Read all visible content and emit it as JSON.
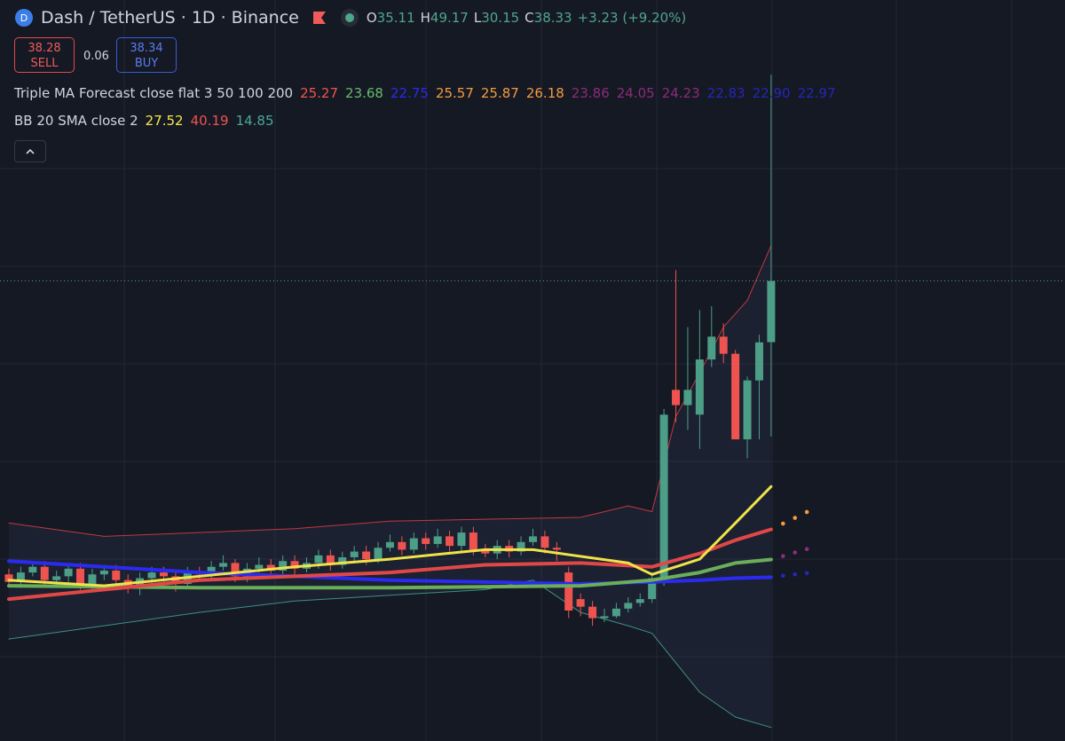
{
  "header": {
    "symbol": "Dash / TetherUS · 1D · Binance",
    "ohlc": [
      {
        "key": "O",
        "value": "35.11"
      },
      {
        "key": "H",
        "value": "49.17"
      },
      {
        "key": "L",
        "value": "30.15"
      },
      {
        "key": "C",
        "value": "38.33"
      }
    ],
    "change": "+3.23 (+9.20%)"
  },
  "trade": {
    "sell_price": "38.28",
    "sell": "SELL",
    "spread": "0.06",
    "buy_price": "38.34",
    "buy": "BUY"
  },
  "indicators": [
    {
      "name": "Triple MA Forecast close flat 3 50 100 200",
      "values": [
        {
          "text": "25.27",
          "color": "#f05350"
        },
        {
          "text": "23.68",
          "color": "#66bb6a"
        },
        {
          "text": "22.75",
          "color": "#2b2bf0"
        },
        {
          "text": "25.57",
          "color": "#f59a3c"
        },
        {
          "text": "25.87",
          "color": "#f59a3c"
        },
        {
          "text": "26.18",
          "color": "#f59a3c"
        },
        {
          "text": "23.86",
          "color": "#8e2a7c"
        },
        {
          "text": "24.05",
          "color": "#8e2a7c"
        },
        {
          "text": "24.23",
          "color": "#8e2a7c"
        },
        {
          "text": "22.83",
          "color": "#2626b8"
        },
        {
          "text": "22.90",
          "color": "#2626b8"
        },
        {
          "text": "22.97",
          "color": "#2626b8"
        }
      ]
    },
    {
      "name": "BB 20 SMA close 2",
      "values": [
        {
          "text": "27.52",
          "color": "#f5e84a"
        },
        {
          "text": "40.19",
          "color": "#f05350"
        },
        {
          "text": "14.85",
          "color": "#4aa79a"
        }
      ]
    }
  ],
  "chart_data": {
    "type": "candlestick",
    "ylim": [
      14.14,
      53.1
    ],
    "up_color": "#4d9e87",
    "down_color": "#ef5350",
    "open": [
      22.9,
      22.5,
      23.0,
      23.3,
      22.6,
      22.8,
      23.2,
      22.4,
      22.9,
      23.1,
      22.6,
      22.2,
      22.7,
      23.0,
      22.8,
      22.4,
      23.0,
      22.9,
      23.3,
      23.5,
      22.8,
      23.2,
      23.4,
      23.1,
      23.6,
      23.2,
      23.5,
      23.9,
      23.4,
      23.8,
      24.1,
      23.7,
      24.3,
      24.6,
      24.2,
      24.8,
      24.5,
      24.9,
      24.4,
      25.1,
      24.2,
      24.0,
      24.4,
      24.1,
      24.6,
      24.9,
      24.3,
      23.0,
      21.6,
      21.2,
      20.6,
      20.7,
      21.1,
      21.4,
      21.6,
      22.56,
      32.6,
      31.8,
      31.3,
      34.2,
      35.4,
      34.5,
      30.0,
      33.1,
      35.11
    ],
    "high": [
      23.2,
      23.3,
      23.6,
      23.6,
      23.1,
      23.5,
      23.5,
      23.2,
      23.4,
      23.4,
      22.9,
      23.0,
      23.3,
      23.3,
      23.1,
      23.3,
      23.3,
      23.6,
      23.9,
      23.7,
      23.5,
      23.8,
      23.7,
      23.9,
      23.9,
      23.8,
      24.2,
      24.2,
      24.1,
      24.4,
      24.4,
      24.6,
      25.0,
      24.9,
      25.1,
      25.1,
      25.3,
      25.2,
      25.4,
      25.4,
      24.5,
      24.7,
      24.7,
      24.9,
      25.3,
      25.2,
      24.6,
      23.3,
      21.9,
      21.5,
      21.1,
      21.4,
      21.7,
      21.9,
      23.0,
      31.6,
      38.9,
      35.9,
      36.8,
      37.0,
      36.1,
      34.7,
      33.3,
      35.5,
      49.17
    ],
    "low": [
      22.2,
      22.2,
      22.8,
      22.3,
      22.3,
      22.5,
      22.1,
      22.1,
      22.6,
      22.3,
      21.9,
      21.8,
      22.4,
      22.5,
      22.0,
      22.2,
      22.6,
      22.7,
      23.1,
      22.5,
      22.5,
      23.0,
      22.8,
      22.9,
      22.9,
      23.0,
      23.2,
      23.1,
      23.2,
      23.6,
      23.4,
      23.5,
      24.1,
      23.9,
      24.0,
      24.2,
      24.3,
      24.1,
      24.1,
      23.9,
      23.8,
      23.7,
      23.8,
      23.9,
      24.4,
      24.0,
      23.6,
      20.6,
      20.7,
      20.2,
      20.4,
      20.6,
      20.9,
      21.2,
      21.4,
      22.3,
      30.9,
      30.5,
      29.5,
      33.8,
      34.0,
      30.0,
      29.0,
      30.0,
      30.15
    ],
    "close": [
      22.5,
      23.0,
      23.3,
      22.6,
      22.8,
      23.2,
      22.4,
      22.9,
      23.1,
      22.6,
      22.2,
      22.7,
      23.0,
      22.8,
      22.4,
      23.0,
      22.9,
      23.3,
      23.5,
      22.8,
      23.2,
      23.4,
      23.1,
      23.6,
      23.2,
      23.5,
      23.9,
      23.4,
      23.8,
      24.1,
      23.7,
      24.3,
      24.6,
      24.2,
      24.8,
      24.5,
      24.9,
      24.4,
      25.1,
      24.2,
      24.0,
      24.4,
      24.1,
      24.6,
      24.9,
      24.3,
      24.2,
      21.0,
      21.2,
      20.6,
      20.7,
      21.1,
      21.4,
      21.6,
      22.7,
      31.3,
      31.8,
      32.6,
      34.2,
      35.4,
      34.5,
      30.0,
      33.1,
      35.1,
      38.33
    ],
    "lines": [
      {
        "color": "#c0393f",
        "width": 1,
        "fill": false,
        "x": [
          0,
          8,
          16,
          24,
          32,
          40,
          48,
          52,
          54,
          56,
          58,
          60,
          62,
          64
        ],
        "values": [
          25.6,
          24.9,
          25.1,
          25.3,
          25.7,
          25.8,
          25.9,
          26.5,
          26.2,
          31.2,
          33.5,
          35.9,
          37.3,
          40.19
        ]
      },
      {
        "color": "#3f8f84",
        "width": 1,
        "fill": false,
        "x": [
          0,
          8,
          16,
          24,
          32,
          40,
          44,
          48,
          52,
          54,
          58,
          61,
          64
        ],
        "values": [
          19.5,
          20.2,
          20.9,
          21.5,
          21.8,
          22.1,
          22.6,
          20.9,
          20.2,
          19.8,
          16.7,
          15.4,
          14.85
        ]
      },
      {
        "color": "#2b2bf0",
        "width": 4,
        "x": [
          0,
          16,
          32,
          48,
          54,
          58,
          61,
          64
        ],
        "values": [
          23.6,
          23.0,
          22.6,
          22.4,
          22.5,
          22.6,
          22.7,
          22.75
        ]
      },
      {
        "color": "#6aae5a",
        "width": 4,
        "x": [
          0,
          16,
          32,
          48,
          54,
          58,
          61,
          64
        ],
        "values": [
          22.3,
          22.2,
          22.2,
          22.3,
          22.6,
          23.0,
          23.5,
          23.68
        ]
      },
      {
        "color": "#e04848",
        "width": 4,
        "x": [
          0,
          8,
          16,
          24,
          32,
          40,
          48,
          54,
          58,
          61,
          64
        ],
        "values": [
          21.6,
          22.1,
          22.6,
          22.8,
          23.0,
          23.4,
          23.5,
          23.3,
          24.0,
          24.7,
          25.27
        ]
      },
      {
        "color": "#f0e24a",
        "width": 3,
        "x": [
          0,
          8,
          16,
          24,
          32,
          40,
          44,
          52,
          54,
          58,
          61,
          64
        ],
        "values": [
          22.6,
          22.3,
          22.8,
          23.3,
          23.7,
          24.2,
          24.2,
          23.5,
          22.9,
          23.7,
          25.6,
          27.52
        ]
      }
    ]
  }
}
